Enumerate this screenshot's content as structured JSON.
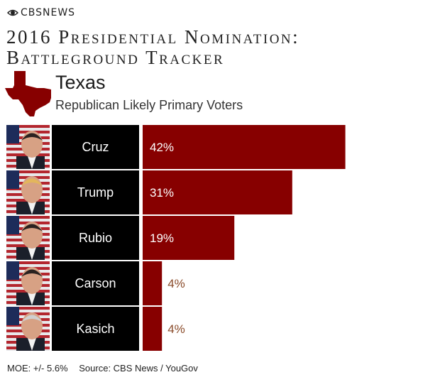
{
  "header": {
    "logo_text": "CBSNEWS",
    "title_line1": "2016 Presidential Nomination:",
    "title_line2": "Battleground Tracker",
    "state": "Texas",
    "subtitle": "Republican Likely Primary Voters"
  },
  "colors": {
    "bar": "#870000",
    "label_bg": "#000000",
    "outside_label": "#8a4b2a",
    "state_shape": "#870000"
  },
  "chart_data": {
    "type": "bar",
    "orientation": "horizontal",
    "categories": [
      "Cruz",
      "Trump",
      "Rubio",
      "Carson",
      "Kasich"
    ],
    "values": [
      42,
      31,
      19,
      4,
      4
    ],
    "value_labels": [
      "42%",
      "31%",
      "19%",
      "4%",
      "4%"
    ],
    "unit": "%",
    "candidate_photos": [
      "Cruz",
      "Trump",
      "Rubio",
      "Carson",
      "Kasich"
    ]
  },
  "footer": {
    "moe": "MOE: +/- 5.6%",
    "source": "Source: CBS News / YouGov"
  }
}
